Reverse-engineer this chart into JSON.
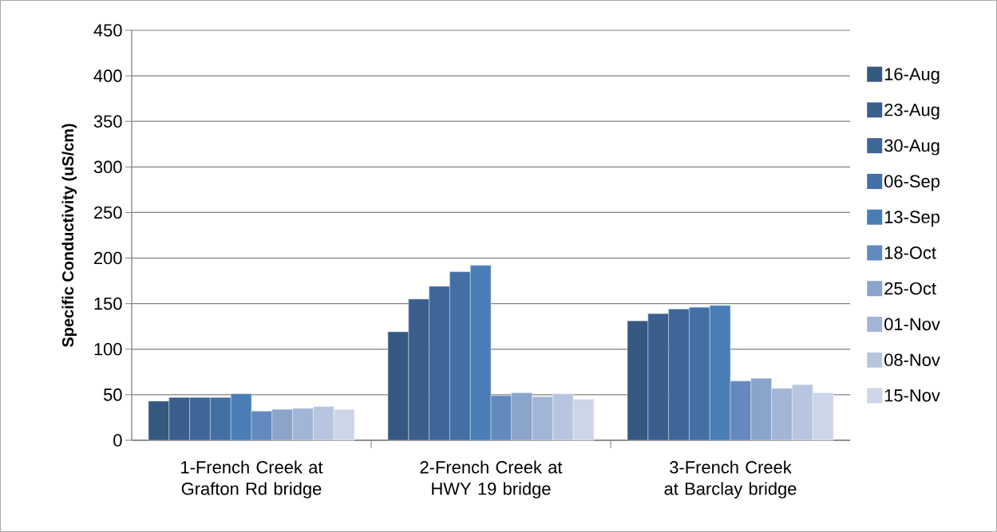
{
  "chart_data": {
    "type": "bar",
    "ylabel": "Specific Conductivity (uS/cm)",
    "categories": [
      "1-French Creek at Grafton Rd bridge",
      "2-French Creek at HWY 19 bridge",
      "3-French Creek at Barclay bridge"
    ],
    "series": [
      {
        "name": "16-Aug",
        "color": "#34587f",
        "values": [
          43,
          119,
          131
        ]
      },
      {
        "name": "23-Aug",
        "color": "#3a5f8d",
        "values": [
          47,
          155,
          139
        ]
      },
      {
        "name": "30-Aug",
        "color": "#3e6698",
        "values": [
          47,
          169,
          144
        ]
      },
      {
        "name": "06-Sep",
        "color": "#436fa4",
        "values": [
          47,
          185,
          146
        ]
      },
      {
        "name": "13-Sep",
        "color": "#4a7db5",
        "values": [
          51,
          192,
          148
        ]
      },
      {
        "name": "18-Oct",
        "color": "#6489bf",
        "values": [
          32,
          49,
          65
        ]
      },
      {
        "name": "25-Oct",
        "color": "#8aa4cc",
        "values": [
          34,
          52,
          68
        ]
      },
      {
        "name": "01-Nov",
        "color": "#a3b5d6",
        "values": [
          35,
          48,
          57
        ]
      },
      {
        "name": "08-Nov",
        "color": "#b8c5e0",
        "values": [
          37,
          51,
          61
        ]
      },
      {
        "name": "15-Nov",
        "color": "#cdd6e8",
        "values": [
          34,
          45,
          52
        ]
      }
    ],
    "ylim": [
      0,
      450
    ],
    "yticks": [
      0,
      50,
      100,
      150,
      200,
      250,
      300,
      350,
      400,
      450
    ],
    "grid": "y",
    "legend": "right"
  }
}
